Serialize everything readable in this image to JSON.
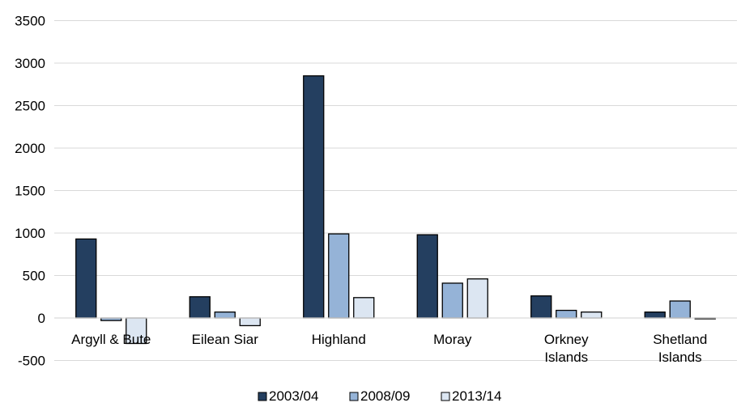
{
  "chart_data": {
    "type": "bar",
    "categories": [
      [
        "Argyll & Bute"
      ],
      [
        "Eilean Siar"
      ],
      [
        "Highland"
      ],
      [
        "Moray"
      ],
      [
        "Orkney",
        "Islands"
      ],
      [
        "Shetland",
        "Islands"
      ]
    ],
    "series": [
      {
        "name": "2003/04",
        "color": "#243f60",
        "values": [
          930,
          250,
          2850,
          980,
          260,
          70
        ]
      },
      {
        "name": "2008/09",
        "color": "#95b3d7",
        "values": [
          -30,
          70,
          990,
          410,
          90,
          200
        ]
      },
      {
        "name": "2013/14",
        "color": "#dce6f2",
        "values": [
          -300,
          -90,
          240,
          460,
          70,
          -10
        ]
      }
    ],
    "ylim": [
      -500,
      3500
    ],
    "yticks": [
      -500,
      0,
      500,
      1000,
      1500,
      2000,
      2500,
      3000,
      3500
    ],
    "grid": true,
    "legend_position": "bottom"
  }
}
